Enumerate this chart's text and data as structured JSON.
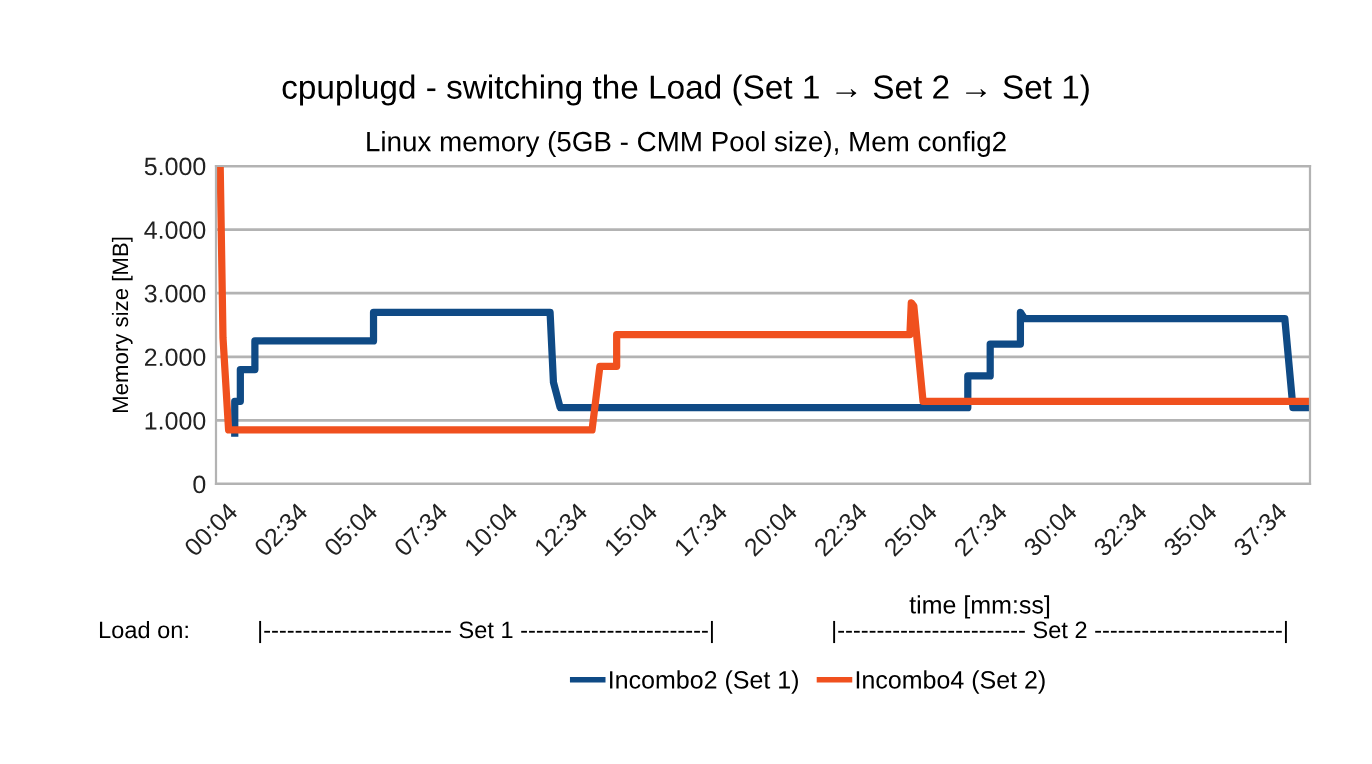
{
  "chart_data": {
    "type": "line",
    "title": "cpuplugd - switching the Load (Set 1 → Set 2 → Set 1)",
    "subtitle": "Linux memory (5GB - CMM Pool size), Mem config2",
    "xlabel": "time [mm:ss]",
    "ylabel": "Memory size [MB]",
    "annotations": [
      "Load on:",
      "|------------------------ Set 1 ------------------------|",
      "|------------------------ Set 2 ------------------------|"
    ],
    "series": [
      {
        "name": "Incombo2 (Set 1)",
        "color": "#0f4a85",
        "x": [
          0.37,
          0.37,
          0.57,
          0.57,
          1.09,
          1.09,
          5.33,
          5.33,
          11.64,
          11.76,
          12.0,
          26.57,
          26.57,
          27.37,
          27.37,
          28.45,
          28.45,
          28.6,
          37.9,
          38.19,
          38.78
        ],
        "values": [
          800,
          1300,
          1300,
          1800,
          1800,
          2250,
          2250,
          2700,
          2700,
          1600,
          1200,
          1200,
          1700,
          1700,
          2200,
          2200,
          2700,
          2600,
          2600,
          1200,
          1200
        ]
      },
      {
        "name": "Incombo4 (Set 2)",
        "color": "#f0501e",
        "x": [
          -0.15,
          -0.05,
          0.15,
          0.35,
          13.14,
          13.28,
          13.42,
          14.02,
          14.02,
          24.5,
          24.55,
          24.64,
          24.97,
          38.78
        ],
        "values": [
          5000,
          2300,
          850,
          850,
          850,
          1350,
          1850,
          1850,
          2350,
          2350,
          2850,
          2800,
          1300,
          1300
        ]
      }
    ],
    "xlim": [
      -0.3,
      38.8
    ],
    "xticks": [
      {
        "value": 0.067,
        "label": "00:04"
      },
      {
        "value": 2.567,
        "label": "02:34"
      },
      {
        "value": 5.067,
        "label": "05:04"
      },
      {
        "value": 7.567,
        "label": "07:34"
      },
      {
        "value": 10.067,
        "label": "10:04"
      },
      {
        "value": 12.567,
        "label": "12:34"
      },
      {
        "value": 15.067,
        "label": "15:04"
      },
      {
        "value": 17.567,
        "label": "17:34"
      },
      {
        "value": 20.067,
        "label": "20:04"
      },
      {
        "value": 22.567,
        "label": "22:34"
      },
      {
        "value": 25.067,
        "label": "25:04"
      },
      {
        "value": 27.567,
        "label": "27:34"
      },
      {
        "value": 30.067,
        "label": "30:04"
      },
      {
        "value": 32.567,
        "label": "32:34"
      },
      {
        "value": 35.067,
        "label": "35:04"
      },
      {
        "value": 37.567,
        "label": "37:34"
      }
    ],
    "ylim": [
      0,
      5000
    ],
    "yticks": [
      {
        "value": 0,
        "label": "0"
      },
      {
        "value": 1000,
        "label": "1.000"
      },
      {
        "value": 2000,
        "label": "2.000"
      },
      {
        "value": 3000,
        "label": "3.000"
      },
      {
        "value": 4000,
        "label": "4.000"
      },
      {
        "value": 5000,
        "label": "5.000"
      }
    ],
    "grid": "y",
    "legend": "bottom",
    "marker": "none",
    "line_style": "solid"
  }
}
